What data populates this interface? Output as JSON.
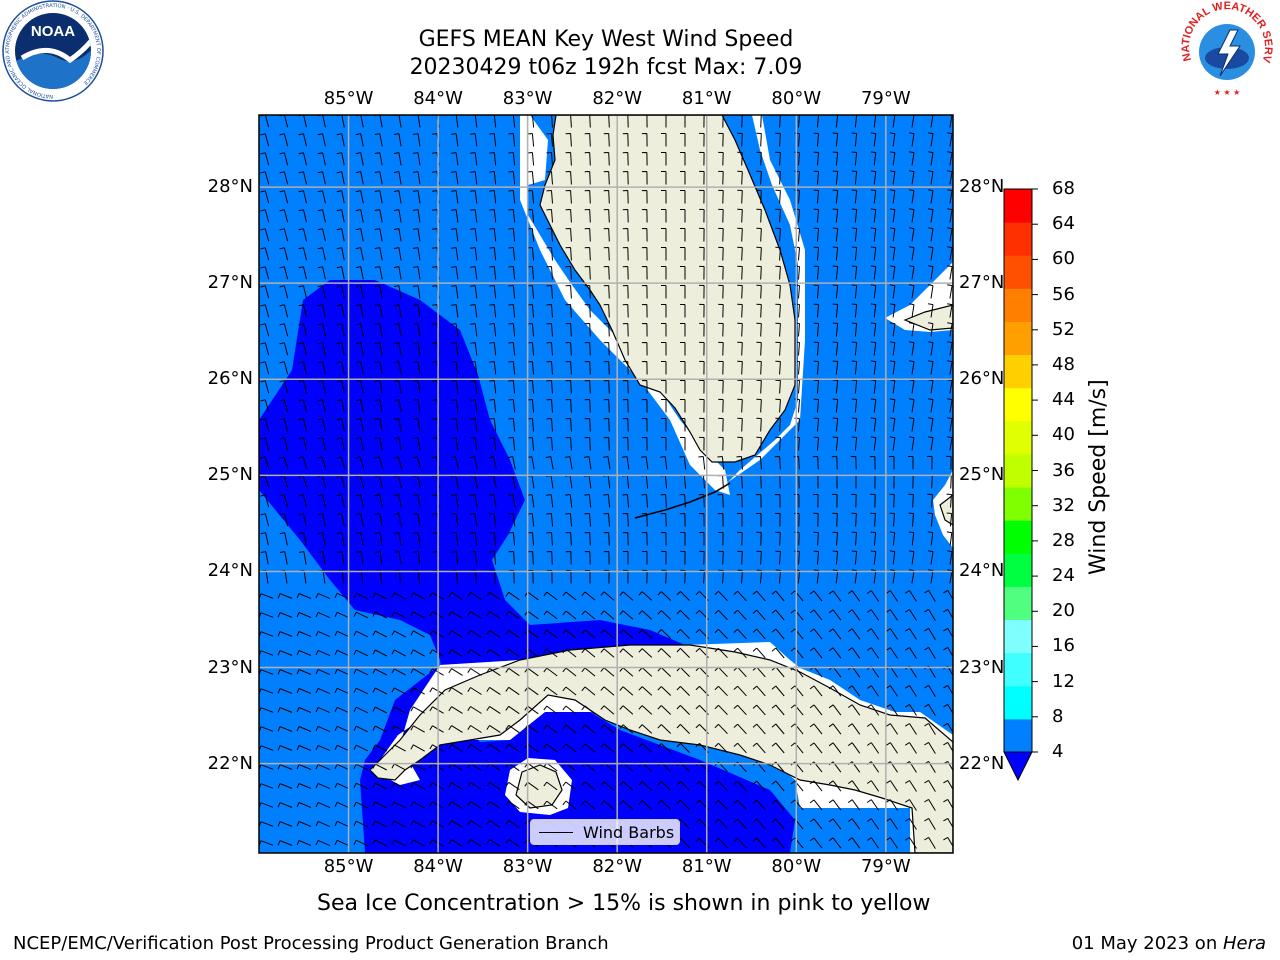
{
  "header": {
    "title_line1": "GEFS MEAN Key West Wind Speed",
    "title_line2": "20230429 t06z 192h fcst   Max: 7.09"
  },
  "logos": {
    "noaa": {
      "text": "NOAA",
      "ring_text": "NATIONAL OCEANIC AND ATMOSPHERIC ADMINISTRATION · U.S. DEPARTMENT OF COMMERCE"
    },
    "nws": {
      "ring_text": "NATIONAL WEATHER SERVICE"
    }
  },
  "map": {
    "lon_labels": [
      "85°W",
      "84°W",
      "83°W",
      "82°W",
      "81°W",
      "80°W",
      "79°W"
    ],
    "lat_labels": [
      "28°N",
      "27°N",
      "26°N",
      "25°N",
      "24°N",
      "23°N",
      "22°N"
    ],
    "lon_range": [
      -86.0,
      -78.25
    ],
    "lat_range": [
      21.07,
      28.75
    ],
    "colors": {
      "ocean_4_8": "#0080ff",
      "ocean_below_4": "#0000ff",
      "land": "#eeeedd",
      "grid": "#b0b0b0"
    },
    "legend": {
      "label": "Wind Barbs"
    }
  },
  "colorbar": {
    "label": "Wind Speed [m/s]",
    "ticks": [
      "68",
      "64",
      "60",
      "56",
      "52",
      "48",
      "44",
      "40",
      "36",
      "32",
      "28",
      "24",
      "20",
      "16",
      "12",
      "8",
      "4"
    ],
    "colors": [
      "#0080ff",
      "#00ffff",
      "#40ffff",
      "#80ffff",
      "#50ff80",
      "#00ff40",
      "#00ff00",
      "#80ff00",
      "#c0ff00",
      "#e0ff00",
      "#ffff00",
      "#ffd000",
      "#ffa000",
      "#ff8000",
      "#ff5000",
      "#ff3000",
      "#ff0000"
    ],
    "extend_color": "#0000ff"
  },
  "caption": "Sea Ice Concentration > 15% is shown in pink to yellow",
  "footer": {
    "left": "NCEP/EMC/Verification Post Processing Product Generation Branch",
    "right_date": "01 May 2023 on ",
    "right_host": "Hera"
  }
}
